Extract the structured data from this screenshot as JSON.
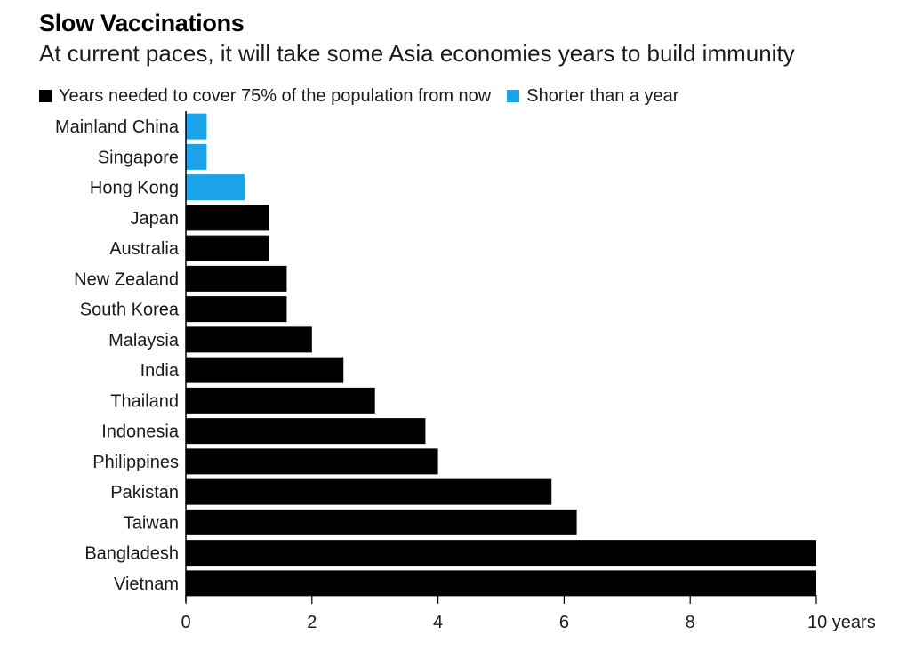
{
  "colors": {
    "long": "#000000",
    "short": "#1aa3e8",
    "text": "#1a1a1a"
  },
  "chart_data": {
    "type": "bar",
    "orientation": "horizontal",
    "title": "Slow Vaccinations",
    "subtitle": "At current paces, it will take some Asia economies years to build immunity",
    "legend": [
      {
        "label": "Years needed to cover 75% of the population from now",
        "color_key": "long"
      },
      {
        "label": "Shorter than a year",
        "color_key": "short"
      }
    ],
    "categories": [
      "Mainland China",
      "Singapore",
      "Hong Kong",
      "Japan",
      "Australia",
      "New Zealand",
      "South Korea",
      "Malaysia",
      "India",
      "Thailand",
      "Indonesia",
      "Philippines",
      "Pakistan",
      "Taiwan",
      "Bangladesh",
      "Vietnam"
    ],
    "values": [
      0.33,
      0.33,
      0.93,
      1.32,
      1.32,
      1.6,
      1.6,
      2.0,
      2.5,
      3.0,
      3.8,
      4.0,
      5.8,
      6.2,
      10,
      10
    ],
    "series_group": [
      "short",
      "short",
      "short",
      "long",
      "long",
      "long",
      "long",
      "long",
      "long",
      "long",
      "long",
      "long",
      "long",
      "long",
      "long",
      "long"
    ],
    "xlim": [
      0,
      10
    ],
    "x_ticks": [
      0,
      2,
      4,
      6,
      8,
      10
    ],
    "x_tick_labels": [
      "0",
      "2",
      "4",
      "6",
      "8",
      "10 years"
    ],
    "xlabel": "",
    "ylabel": "",
    "grid": false
  }
}
